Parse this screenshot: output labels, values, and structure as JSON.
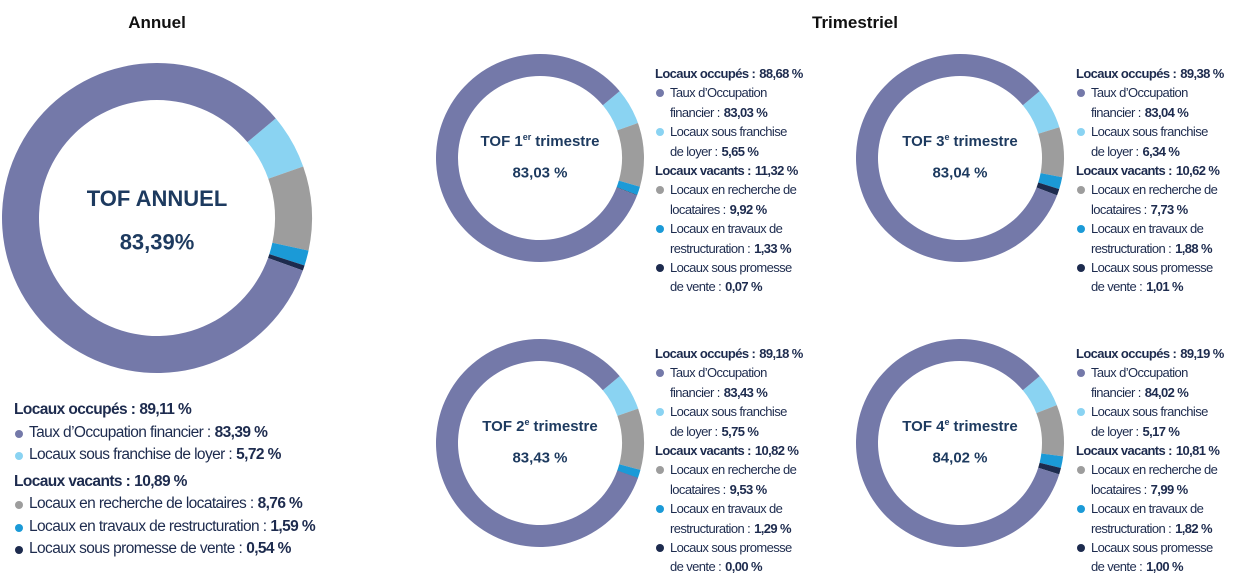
{
  "headings": {
    "annual": "Annuel",
    "quarterly": "Trimestriel"
  },
  "chart_data": [
    {
      "type": "pie",
      "donut": true,
      "center_title": "TOF ANNUEL",
      "center_value": 83.39,
      "center_value_label": "83,39%",
      "groups": [
        {
          "name": "Locaux occupés :",
          "value": 89.11,
          "value_label": "89,11 %",
          "items": [
            {
              "name": "Taux d’Occupation financier :",
              "color": "#7479a9",
              "value": 83.39,
              "value_label": "83,39 %"
            },
            {
              "name": "Locaux sous franchise de loyer :",
              "color": "#8ad3f2",
              "value": 5.72,
              "value_label": "5,72 %"
            }
          ]
        },
        {
          "name": "Locaux vacants :",
          "value": 10.89,
          "value_label": "10,89 %",
          "items": [
            {
              "name": "Locaux en recherche de locataires :",
              "color": "#9d9d9d",
              "value": 8.76,
              "value_label": "8,76 %"
            },
            {
              "name": "Locaux en travaux de restructuration :",
              "color": "#1b9ad7",
              "value": 1.59,
              "value_label": "1,59 %"
            },
            {
              "name": "Locaux sous promesse de vente :",
              "color": "#1d2b4e",
              "value": 0.54,
              "value_label": "0,54 %"
            }
          ]
        }
      ]
    },
    {
      "type": "pie",
      "donut": true,
      "center_title": {
        "prefix": "TOF 1",
        "ordinal": "er",
        "suffix": "trimestre"
      },
      "center_value": 83.03,
      "center_value_label": "83,03 %",
      "groups": [
        {
          "name": "Locaux occupés :",
          "value": 88.68,
          "value_label": "88,68 %",
          "items": [
            {
              "name": "Taux d’Occupation financier :",
              "color": "#7479a9",
              "value": 83.03,
              "value_label": "83,03 %"
            },
            {
              "name": "Locaux sous franchise de loyer :",
              "color": "#8ad3f2",
              "value": 5.65,
              "value_label": "5,65 %"
            }
          ]
        },
        {
          "name": "Locaux vacants :",
          "value": 11.32,
          "value_label": "11,32 %",
          "items": [
            {
              "name": "Locaux en recherche de locataires :",
              "color": "#9d9d9d",
              "value": 9.92,
              "value_label": "9,92 %"
            },
            {
              "name": "Locaux en travaux de restructuration :",
              "color": "#1b9ad7",
              "value": 1.33,
              "value_label": "1,33 %"
            },
            {
              "name": "Locaux sous promesse de vente :",
              "color": "#1d2b4e",
              "value": 0.07,
              "value_label": "0,07 %"
            }
          ]
        }
      ]
    },
    {
      "type": "pie",
      "donut": true,
      "center_title": {
        "prefix": "TOF 2",
        "ordinal": "e",
        "suffix": "trimestre"
      },
      "center_value": 83.43,
      "center_value_label": "83,43 %",
      "groups": [
        {
          "name": "Locaux occupés :",
          "value": 89.18,
          "value_label": "89,18 %",
          "items": [
            {
              "name": "Taux d’Occupation financier :",
              "color": "#7479a9",
              "value": 83.43,
              "value_label": "83,43 %"
            },
            {
              "name": "Locaux sous franchise de loyer :",
              "color": "#8ad3f2",
              "value": 5.75,
              "value_label": "5,75 %"
            }
          ]
        },
        {
          "name": "Locaux vacants :",
          "value": 10.82,
          "value_label": "10,82 %",
          "items": [
            {
              "name": "Locaux en recherche de locataires :",
              "color": "#9d9d9d",
              "value": 9.53,
              "value_label": "9,53 %"
            },
            {
              "name": "Locaux en travaux de restructuration :",
              "color": "#1b9ad7",
              "value": 1.29,
              "value_label": "1,29 %"
            },
            {
              "name": "Locaux sous promesse de vente :",
              "color": "#1d2b4e",
              "value": 0.0,
              "value_label": "0,00 %"
            }
          ]
        }
      ]
    },
    {
      "type": "pie",
      "donut": true,
      "center_title": {
        "prefix": "TOF 3",
        "ordinal": "e",
        "suffix": "trimestre"
      },
      "center_value": 83.04,
      "center_value_label": "83,04 %",
      "groups": [
        {
          "name": "Locaux occupés :",
          "value": 89.38,
          "value_label": "89,38 %",
          "items": [
            {
              "name": "Taux d’Occupation financier :",
              "color": "#7479a9",
              "value": 83.04,
              "value_label": "83,04 %"
            },
            {
              "name": "Locaux sous franchise de loyer :",
              "color": "#8ad3f2",
              "value": 6.34,
              "value_label": "6,34 %"
            }
          ]
        },
        {
          "name": "Locaux vacants :",
          "value": 10.62,
          "value_label": "10,62 %",
          "items": [
            {
              "name": "Locaux en recherche de locataires :",
              "color": "#9d9d9d",
              "value": 7.73,
              "value_label": "7,73 %"
            },
            {
              "name": "Locaux en travaux de restructuration :",
              "color": "#1b9ad7",
              "value": 1.88,
              "value_label": "1,88 %"
            },
            {
              "name": "Locaux sous promesse de vente :",
              "color": "#1d2b4e",
              "value": 1.01,
              "value_label": "1,01 %"
            }
          ]
        }
      ]
    },
    {
      "type": "pie",
      "donut": true,
      "center_title": {
        "prefix": "TOF 4",
        "ordinal": "e",
        "suffix": "trimestre"
      },
      "center_value": 84.02,
      "center_value_label": "84,02 %",
      "groups": [
        {
          "name": "Locaux occupés :",
          "value": 89.19,
          "value_label": "89,19 %",
          "items": [
            {
              "name": "Taux d’Occupation financier :",
              "color": "#7479a9",
              "value": 84.02,
              "value_label": "84,02 %"
            },
            {
              "name": "Locaux sous franchise de loyer :",
              "color": "#8ad3f2",
              "value": 5.17,
              "value_label": "5,17 %"
            }
          ]
        },
        {
          "name": "Locaux vacants :",
          "value": 10.81,
          "value_label": "10,81 %",
          "items": [
            {
              "name": "Locaux en recherche de locataires :",
              "color": "#9d9d9d",
              "value": 7.99,
              "value_label": "7,99 %"
            },
            {
              "name": "Locaux en travaux de restructuration :",
              "color": "#1b9ad7",
              "value": 1.82,
              "value_label": "1,82 %"
            },
            {
              "name": "Locaux sous promesse de vente :",
              "color": "#1d2b4e",
              "value": 1.0,
              "value_label": "1,00 %"
            }
          ]
        }
      ]
    }
  ]
}
